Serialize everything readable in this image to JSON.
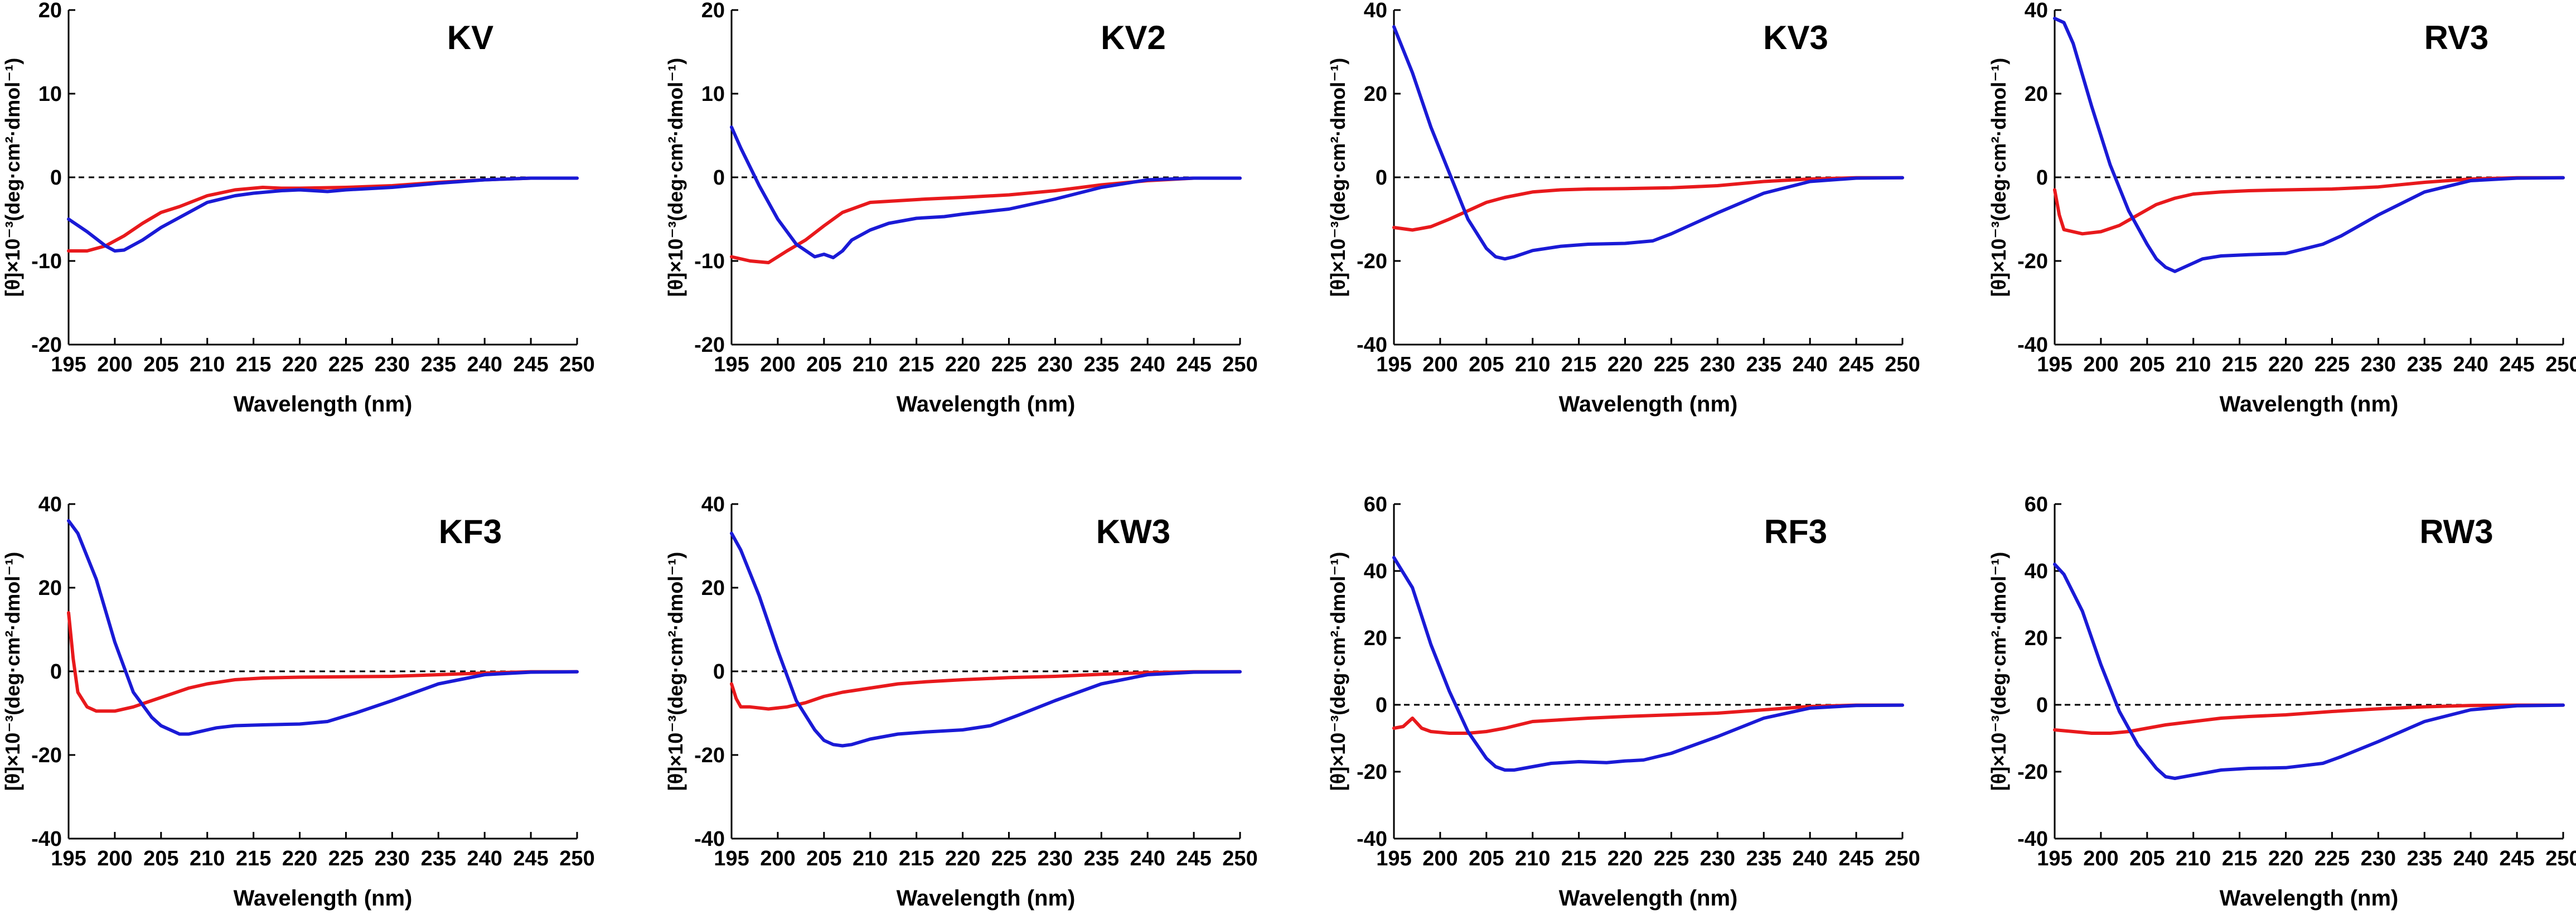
{
  "colors": {
    "series_a": "#e8191c",
    "series_b": "#1a1ad6"
  },
  "chart_data": [
    {
      "type": "line",
      "title": "KV",
      "xlabel": "Wavelength (nm)",
      "ylabel": "[θ]×10⁻³(deg·cm²·dmol⁻¹)",
      "xlim": [
        195,
        250
      ],
      "ylim": [
        -20,
        20
      ],
      "xticks": [
        195,
        200,
        205,
        210,
        215,
        220,
        225,
        230,
        235,
        240,
        245,
        250
      ],
      "yticks": [
        -20,
        -10,
        0,
        10,
        20
      ],
      "series": [
        {
          "name": "red",
          "color": "#e8191c",
          "x": [
            195,
            197,
            199,
            201,
            203,
            205,
            207,
            210,
            213,
            216,
            218,
            220,
            225,
            230,
            235,
            240,
            245,
            250
          ],
          "y": [
            -8.8,
            -8.8,
            -8.2,
            -7,
            -5.5,
            -4.2,
            -3.5,
            -2.2,
            -1.5,
            -1.2,
            -1.3,
            -1.3,
            -1.2,
            -1,
            -0.6,
            -0.3,
            -0.1,
            -0.1
          ]
        },
        {
          "name": "blue",
          "color": "#1a1ad6",
          "x": [
            195,
            197,
            199,
            200,
            201,
            203,
            205,
            207,
            210,
            213,
            215,
            218,
            220,
            223,
            225,
            230,
            235,
            240,
            245,
            250
          ],
          "y": [
            -5,
            -6.5,
            -8.2,
            -8.8,
            -8.7,
            -7.5,
            -6,
            -4.8,
            -3,
            -2.2,
            -1.9,
            -1.6,
            -1.5,
            -1.7,
            -1.5,
            -1.2,
            -0.7,
            -0.3,
            -0.1,
            -0.1
          ]
        }
      ]
    },
    {
      "type": "line",
      "title": "KV2",
      "xlabel": "Wavelength (nm)",
      "ylabel": "[θ]×10⁻³(deg·cm²·dmol⁻¹)",
      "xlim": [
        195,
        250
      ],
      "ylim": [
        -20,
        20
      ],
      "xticks": [
        195,
        200,
        205,
        210,
        215,
        220,
        225,
        230,
        235,
        240,
        245,
        250
      ],
      "yticks": [
        -20,
        -10,
        0,
        10,
        20
      ],
      "series": [
        {
          "name": "red",
          "color": "#e8191c",
          "x": [
            195,
            197,
            199,
            201,
            203,
            205,
            207,
            210,
            213,
            216,
            220,
            225,
            230,
            235,
            240,
            245,
            250
          ],
          "y": [
            -9.5,
            -10,
            -10.2,
            -8.8,
            -7.5,
            -5.8,
            -4.2,
            -3,
            -2.8,
            -2.6,
            -2.4,
            -2.1,
            -1.6,
            -0.9,
            -0.4,
            -0.1,
            -0.1
          ]
        },
        {
          "name": "blue",
          "color": "#1a1ad6",
          "x": [
            195,
            196,
            198,
            200,
            202,
            204,
            205,
            206,
            207,
            208,
            210,
            212,
            215,
            218,
            220,
            225,
            230,
            235,
            240,
            245,
            250
          ],
          "y": [
            6,
            3.5,
            -1,
            -5,
            -8,
            -9.5,
            -9.2,
            -9.6,
            -8.8,
            -7.5,
            -6.3,
            -5.5,
            -4.9,
            -4.7,
            -4.4,
            -3.8,
            -2.6,
            -1.2,
            -0.3,
            -0.1,
            -0.1
          ]
        }
      ]
    },
    {
      "type": "line",
      "title": "KV3",
      "xlabel": "Wavelength (nm)",
      "ylabel": "[θ]×10⁻³(deg·cm²·dmol⁻¹)",
      "xlim": [
        195,
        250
      ],
      "ylim": [
        -40,
        40
      ],
      "xticks": [
        195,
        200,
        205,
        210,
        215,
        220,
        225,
        230,
        235,
        240,
        245,
        250
      ],
      "yticks": [
        -40,
        -20,
        0,
        20,
        40
      ],
      "series": [
        {
          "name": "red",
          "color": "#e8191c",
          "x": [
            195,
            197,
            199,
            201,
            203,
            205,
            207,
            210,
            213,
            216,
            220,
            225,
            230,
            235,
            240,
            245,
            250
          ],
          "y": [
            -12,
            -12.6,
            -11.8,
            -10,
            -8,
            -6,
            -4.8,
            -3.5,
            -3,
            -2.8,
            -2.7,
            -2.5,
            -2,
            -1,
            -0.4,
            -0.1,
            -0.1
          ]
        },
        {
          "name": "blue",
          "color": "#1a1ad6",
          "x": [
            195,
            197,
            199,
            201,
            203,
            205,
            206,
            207,
            208,
            210,
            213,
            216,
            220,
            223,
            225,
            230,
            235,
            240,
            245,
            250
          ],
          "y": [
            36,
            25,
            12,
            1,
            -10,
            -17,
            -19,
            -19.5,
            -19,
            -17.5,
            -16.5,
            -16,
            -15.8,
            -15.2,
            -13.5,
            -8.5,
            -3.8,
            -1,
            -0.2,
            -0.1
          ]
        }
      ]
    },
    {
      "type": "line",
      "title": "RV3",
      "xlabel": "Wavelength (nm)",
      "ylabel": "[θ]×10⁻³(deg·cm²·dmol⁻¹)",
      "xlim": [
        195,
        250
      ],
      "ylim": [
        -40,
        40
      ],
      "xticks": [
        195,
        200,
        205,
        210,
        215,
        220,
        225,
        230,
        235,
        240,
        245,
        250
      ],
      "yticks": [
        -40,
        -20,
        0,
        20,
        40
      ],
      "series": [
        {
          "name": "red",
          "color": "#e8191c",
          "x": [
            195,
            195.5,
            196,
            198,
            200,
            202,
            204,
            206,
            208,
            210,
            213,
            216,
            220,
            225,
            230,
            235,
            240,
            245,
            250
          ],
          "y": [
            -3,
            -9,
            -12.5,
            -13.5,
            -13,
            -11.5,
            -9,
            -6.5,
            -5,
            -4,
            -3.5,
            -3.2,
            -3,
            -2.8,
            -2.3,
            -1.2,
            -0.4,
            -0.1,
            -0.1
          ]
        },
        {
          "name": "blue",
          "color": "#1a1ad6",
          "x": [
            195,
            196,
            197,
            199,
            201,
            203,
            205,
            206,
            207,
            208,
            209,
            211,
            213,
            216,
            220,
            224,
            226,
            230,
            235,
            240,
            245,
            250
          ],
          "y": [
            38,
            37,
            32,
            17,
            3,
            -8,
            -16,
            -19.5,
            -21.5,
            -22.5,
            -21.5,
            -19.5,
            -18.8,
            -18.5,
            -18.2,
            -16,
            -14,
            -9,
            -3.5,
            -0.8,
            -0.2,
            -0.1
          ]
        }
      ]
    },
    {
      "type": "line",
      "title": "KF3",
      "xlabel": "Wavelength (nm)",
      "ylabel": "[θ]×10⁻³(deg·cm²·dmol⁻¹)",
      "xlim": [
        195,
        250
      ],
      "ylim": [
        -40,
        40
      ],
      "xticks": [
        195,
        200,
        205,
        210,
        215,
        220,
        225,
        230,
        235,
        240,
        245,
        250
      ],
      "yticks": [
        -40,
        -20,
        0,
        20,
        40
      ],
      "series": [
        {
          "name": "red",
          "color": "#e8191c",
          "x": [
            195,
            195.5,
            196,
            197,
            198,
            200,
            202,
            204,
            206,
            208,
            210,
            213,
            216,
            220,
            225,
            230,
            235,
            240,
            245,
            250
          ],
          "y": [
            14,
            3,
            -5,
            -8.5,
            -9.5,
            -9.5,
            -8.5,
            -7,
            -5.5,
            -4,
            -3,
            -2,
            -1.6,
            -1.4,
            -1.3,
            -1.2,
            -0.8,
            -0.4,
            -0.1,
            -0.1
          ]
        },
        {
          "name": "blue",
          "color": "#1a1ad6",
          "x": [
            195,
            196,
            198,
            200,
            202,
            204,
            205,
            207,
            208,
            209,
            211,
            213,
            216,
            220,
            223,
            226,
            230,
            235,
            240,
            245,
            250
          ],
          "y": [
            36,
            33,
            22,
            7,
            -5,
            -11,
            -13,
            -15,
            -15,
            -14.5,
            -13.5,
            -13,
            -12.8,
            -12.6,
            -12,
            -10,
            -7,
            -3,
            -0.8,
            -0.2,
            -0.1
          ]
        }
      ]
    },
    {
      "type": "line",
      "title": "KW3",
      "xlabel": "Wavelength (nm)",
      "ylabel": "[θ]×10⁻³(deg·cm²·dmol⁻¹)",
      "xlim": [
        195,
        250
      ],
      "ylim": [
        -40,
        40
      ],
      "xticks": [
        195,
        200,
        205,
        210,
        215,
        220,
        225,
        230,
        235,
        240,
        245,
        250
      ],
      "yticks": [
        -40,
        -20,
        0,
        20,
        40
      ],
      "series": [
        {
          "name": "red",
          "color": "#e8191c",
          "x": [
            195,
            195.5,
            196,
            197,
            199,
            201,
            203,
            205,
            207,
            210,
            213,
            216,
            220,
            225,
            230,
            235,
            240,
            245,
            250
          ],
          "y": [
            -3,
            -6.5,
            -8.5,
            -8.5,
            -9,
            -8.5,
            -7.5,
            -6,
            -5,
            -4,
            -3,
            -2.5,
            -2,
            -1.5,
            -1.2,
            -0.7,
            -0.3,
            -0.1,
            -0.1
          ]
        },
        {
          "name": "blue",
          "color": "#1a1ad6",
          "x": [
            195,
            196,
            198,
            200,
            202,
            204,
            205,
            206,
            207,
            208,
            210,
            213,
            216,
            220,
            223,
            226,
            230,
            235,
            240,
            245,
            250
          ],
          "y": [
            33,
            29,
            18,
            5,
            -7,
            -14,
            -16.5,
            -17.5,
            -17.8,
            -17.5,
            -16.2,
            -15,
            -14.5,
            -14,
            -13,
            -10.5,
            -7,
            -3,
            -0.8,
            -0.2,
            -0.1
          ]
        }
      ]
    },
    {
      "type": "line",
      "title": "RF3",
      "xlabel": "Wavelength (nm)",
      "ylabel": "[θ]×10⁻³(deg·cm²·dmol⁻¹)",
      "xlim": [
        195,
        250
      ],
      "ylim": [
        -40,
        60
      ],
      "xticks": [
        195,
        200,
        205,
        210,
        215,
        220,
        225,
        230,
        235,
        240,
        245,
        250
      ],
      "yticks": [
        -40,
        -20,
        0,
        20,
        40,
        60
      ],
      "series": [
        {
          "name": "red",
          "color": "#e8191c",
          "x": [
            195,
            196,
            197,
            198,
            199,
            201,
            203,
            205,
            207,
            210,
            213,
            216,
            220,
            225,
            230,
            235,
            240,
            245,
            250
          ],
          "y": [
            -7,
            -6.5,
            -4,
            -7,
            -8,
            -8.5,
            -8.5,
            -8,
            -7,
            -5,
            -4.5,
            -4,
            -3.5,
            -3,
            -2.5,
            -1.5,
            -0.5,
            -0.1,
            -0.1
          ]
        },
        {
          "name": "blue",
          "color": "#1a1ad6",
          "x": [
            195,
            197,
            199,
            201,
            203,
            205,
            206,
            207,
            208,
            210,
            212,
            215,
            218,
            220,
            222,
            225,
            230,
            235,
            240,
            245,
            250
          ],
          "y": [
            44,
            35,
            18,
            4,
            -8,
            -16,
            -18.5,
            -19.5,
            -19.5,
            -18.5,
            -17.5,
            -17,
            -17.3,
            -16.8,
            -16.5,
            -14.5,
            -9.5,
            -4,
            -1,
            -0.2,
            -0.1
          ]
        }
      ]
    },
    {
      "type": "line",
      "title": "RW3",
      "xlabel": "Wavelength (nm)",
      "ylabel": "[θ]×10⁻³(deg·cm²·dmol⁻¹)",
      "xlim": [
        195,
        250
      ],
      "ylim": [
        -40,
        60
      ],
      "xticks": [
        195,
        200,
        205,
        210,
        215,
        220,
        225,
        230,
        235,
        240,
        245,
        250
      ],
      "yticks": [
        -40,
        -20,
        0,
        20,
        40,
        60
      ],
      "series": [
        {
          "name": "red",
          "color": "#e8191c",
          "x": [
            195,
            197,
            199,
            201,
            203,
            205,
            207,
            210,
            213,
            216,
            220,
            225,
            230,
            235,
            240,
            245,
            250
          ],
          "y": [
            -7.5,
            -8,
            -8.5,
            -8.5,
            -8,
            -7,
            -6,
            -5,
            -4,
            -3.5,
            -3,
            -2,
            -1.2,
            -0.6,
            -0.2,
            -0.1,
            -0.1
          ]
        },
        {
          "name": "blue",
          "color": "#1a1ad6",
          "x": [
            195,
            196,
            198,
            200,
            202,
            204,
            206,
            207,
            208,
            210,
            213,
            216,
            220,
            224,
            226,
            230,
            235,
            240,
            245,
            250
          ],
          "y": [
            42,
            39,
            28,
            12,
            -2,
            -12,
            -19,
            -21.5,
            -22,
            -21,
            -19.5,
            -19,
            -18.8,
            -17.5,
            -15.5,
            -11,
            -5,
            -1.5,
            -0.3,
            -0.1
          ]
        }
      ]
    }
  ]
}
